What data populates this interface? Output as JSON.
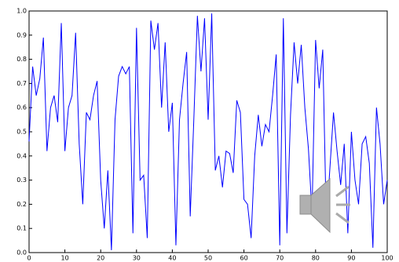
{
  "chart_data": {
    "type": "line",
    "color": "#0000ff",
    "x": [
      0,
      1,
      2,
      3,
      4,
      5,
      6,
      7,
      8,
      9,
      10,
      11,
      12,
      13,
      14,
      15,
      16,
      17,
      18,
      19,
      20,
      21,
      22,
      23,
      24,
      25,
      26,
      27,
      28,
      29,
      30,
      31,
      32,
      33,
      34,
      35,
      36,
      37,
      38,
      39,
      40,
      41,
      42,
      43,
      44,
      45,
      46,
      47,
      48,
      49,
      50,
      51,
      52,
      53,
      54,
      55,
      56,
      57,
      58,
      59,
      60,
      61,
      62,
      63,
      64,
      65,
      66,
      67,
      68,
      69,
      70,
      71,
      72,
      73,
      74,
      75,
      76,
      77,
      78,
      79,
      80,
      81,
      82,
      83,
      84,
      85,
      86,
      87,
      88,
      89,
      90,
      91,
      92,
      93,
      94,
      95,
      96,
      97,
      98,
      99,
      100
    ],
    "values": [
      0.46,
      0.77,
      0.65,
      0.72,
      0.89,
      0.42,
      0.6,
      0.65,
      0.54,
      0.95,
      0.42,
      0.6,
      0.65,
      0.91,
      0.45,
      0.2,
      0.58,
      0.55,
      0.65,
      0.71,
      0.3,
      0.1,
      0.34,
      0.01,
      0.55,
      0.73,
      0.77,
      0.74,
      0.77,
      0.08,
      0.93,
      0.3,
      0.32,
      0.06,
      0.96,
      0.84,
      0.95,
      0.6,
      0.87,
      0.5,
      0.62,
      0.03,
      0.55,
      0.7,
      0.83,
      0.15,
      0.55,
      0.98,
      0.75,
      0.97,
      0.55,
      0.99,
      0.34,
      0.4,
      0.27,
      0.42,
      0.41,
      0.33,
      0.63,
      0.58,
      0.22,
      0.2,
      0.06,
      0.4,
      0.57,
      0.44,
      0.53,
      0.5,
      0.65,
      0.82,
      0.03,
      0.97,
      0.08,
      0.57,
      0.87,
      0.7,
      0.86,
      0.6,
      0.43,
      0.16,
      0.88,
      0.68,
      0.84,
      0.12,
      0.35,
      0.58,
      0.42,
      0.28,
      0.45,
      0.08,
      0.5,
      0.3,
      0.2,
      0.45,
      0.48,
      0.37,
      0.02,
      0.6,
      0.45,
      0.2,
      0.3
    ],
    "xlim": [
      0,
      100
    ],
    "ylim": [
      0,
      1
    ],
    "xticks": [
      0,
      10,
      20,
      30,
      40,
      50,
      60,
      70,
      80,
      90,
      100
    ],
    "yticks": [
      {
        "value": 0,
        "label": "0.0"
      },
      0.1,
      0.2,
      0.3,
      0.4,
      0.5,
      0.6,
      0.7,
      0.8,
      0.9,
      {
        "value": 1,
        "label": "1.0"
      }
    ]
  }
}
